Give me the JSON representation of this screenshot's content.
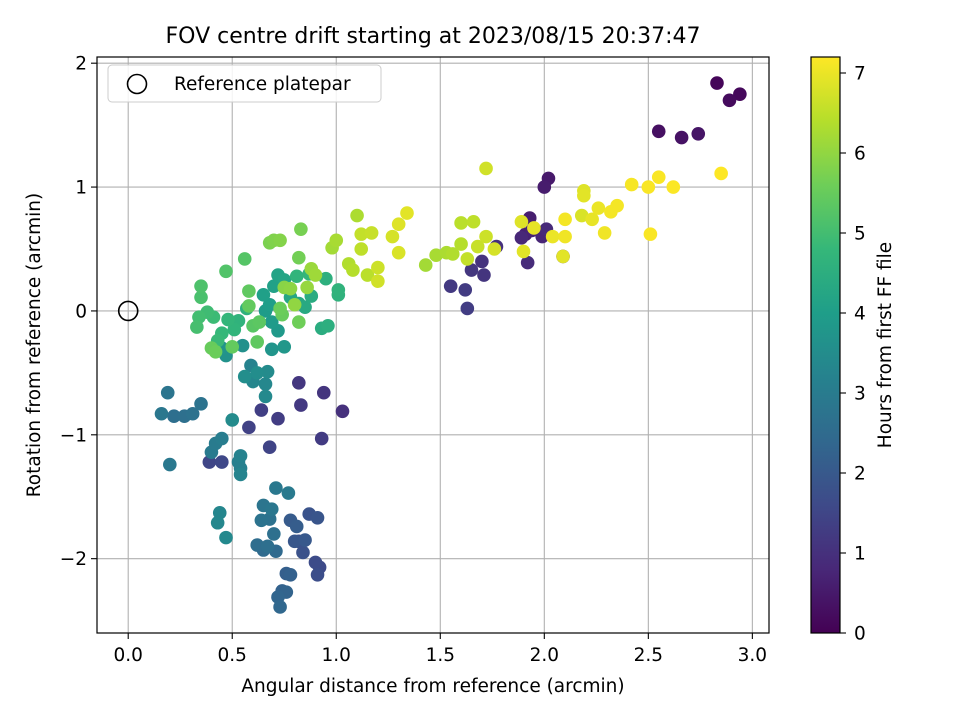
{
  "chart_data": {
    "type": "scatter",
    "title": "FOV centre drift starting at 2023/08/15 20:37:47",
    "xlabel": "Angular distance from reference (arcmin)",
    "ylabel": "Rotation from reference (arcmin)",
    "xlim": [
      -0.15,
      3.08
    ],
    "ylim": [
      -2.6,
      2.05
    ],
    "xticks": [
      0.0,
      0.5,
      1.0,
      1.5,
      2.0,
      2.5,
      3.0
    ],
    "xtick_labels": [
      "0.0",
      "0.5",
      "1.0",
      "1.5",
      "2.0",
      "2.5",
      "3.0"
    ],
    "yticks": [
      -2,
      -1,
      0,
      1,
      2
    ],
    "ytick_labels": [
      "−2",
      "−1",
      "0",
      "1",
      "2"
    ],
    "grid": true,
    "legend": {
      "placement": "top-left",
      "label": "Reference platepar",
      "marker": "open-circle"
    },
    "reference_point": {
      "x": 0.0,
      "y": 0.0
    },
    "colorbar": {
      "label": "Hours from first FF file",
      "colormap": "viridis",
      "range": [
        0,
        7.2
      ],
      "ticks": [
        0,
        1,
        2,
        3,
        4,
        5,
        6,
        7
      ],
      "tick_labels": [
        "0",
        "1",
        "2",
        "3",
        "4",
        "5",
        "6",
        "7"
      ]
    },
    "colormap_stops": [
      "#440154",
      "#482878",
      "#3e4a89",
      "#31688e",
      "#26828e",
      "#1f9e89",
      "#35b779",
      "#6ece58",
      "#b5de2b",
      "#fde725"
    ],
    "points": [
      {
        "x": 2.83,
        "y": 1.84,
        "c": 0.1
      },
      {
        "x": 2.94,
        "y": 1.75,
        "c": 0.15
      },
      {
        "x": 2.89,
        "y": 1.7,
        "c": 0.2
      },
      {
        "x": 2.55,
        "y": 1.45,
        "c": 0.3
      },
      {
        "x": 2.66,
        "y": 1.4,
        "c": 0.35
      },
      {
        "x": 2.74,
        "y": 1.43,
        "c": 0.4
      },
      {
        "x": 2.02,
        "y": 1.07,
        "c": 0.5
      },
      {
        "x": 2.0,
        "y": 1.0,
        "c": 0.55
      },
      {
        "x": 1.93,
        "y": 0.75,
        "c": 0.6
      },
      {
        "x": 1.91,
        "y": 0.62,
        "c": 0.65
      },
      {
        "x": 1.94,
        "y": 0.65,
        "c": 0.7
      },
      {
        "x": 1.99,
        "y": 0.6,
        "c": 0.75
      },
      {
        "x": 1.89,
        "y": 0.59,
        "c": 0.8
      },
      {
        "x": 2.01,
        "y": 0.66,
        "c": 0.85
      },
      {
        "x": 1.92,
        "y": 0.39,
        "c": 0.9
      },
      {
        "x": 2.09,
        "y": 0.44,
        "c": 0.95
      },
      {
        "x": 1.77,
        "y": 0.52,
        "c": 1.0
      },
      {
        "x": 1.7,
        "y": 0.4,
        "c": 1.05
      },
      {
        "x": 1.71,
        "y": 0.29,
        "c": 1.1
      },
      {
        "x": 1.65,
        "y": 0.33,
        "c": 1.15
      },
      {
        "x": 1.55,
        "y": 0.2,
        "c": 1.2
      },
      {
        "x": 1.62,
        "y": 0.17,
        "c": 1.25
      },
      {
        "x": 1.63,
        "y": 0.02,
        "c": 1.3
      },
      {
        "x": 1.03,
        "y": -0.81,
        "c": 1.0
      },
      {
        "x": 0.94,
        "y": -0.66,
        "c": 1.1
      },
      {
        "x": 0.82,
        "y": -0.58,
        "c": 1.15
      },
      {
        "x": 0.83,
        "y": -0.76,
        "c": 1.2
      },
      {
        "x": 0.93,
        "y": -1.03,
        "c": 1.25
      },
      {
        "x": 0.72,
        "y": -0.87,
        "c": 1.3
      },
      {
        "x": 0.64,
        "y": -0.8,
        "c": 1.35
      },
      {
        "x": 0.58,
        "y": -0.94,
        "c": 1.4
      },
      {
        "x": 0.68,
        "y": -1.1,
        "c": 1.45
      },
      {
        "x": 0.39,
        "y": -1.22,
        "c": 1.5
      },
      {
        "x": 0.45,
        "y": -1.22,
        "c": 1.55
      },
      {
        "x": 0.92,
        "y": -2.07,
        "c": 1.6
      },
      {
        "x": 0.9,
        "y": -2.03,
        "c": 1.65
      },
      {
        "x": 0.91,
        "y": -2.13,
        "c": 1.7
      },
      {
        "x": 0.82,
        "y": -1.86,
        "c": 1.75
      },
      {
        "x": 0.84,
        "y": -1.95,
        "c": 1.8
      },
      {
        "x": 0.87,
        "y": -1.64,
        "c": 1.85
      },
      {
        "x": 0.91,
        "y": -1.67,
        "c": 1.9
      },
      {
        "x": 0.8,
        "y": -1.86,
        "c": 1.95
      },
      {
        "x": 0.85,
        "y": -1.85,
        "c": 2.0
      },
      {
        "x": 0.78,
        "y": -1.69,
        "c": 2.05
      },
      {
        "x": 0.81,
        "y": -1.74,
        "c": 2.1
      },
      {
        "x": 0.76,
        "y": -2.12,
        "c": 2.15
      },
      {
        "x": 0.78,
        "y": -2.13,
        "c": 2.2
      },
      {
        "x": 0.74,
        "y": -2.26,
        "c": 2.25
      },
      {
        "x": 0.76,
        "y": -2.27,
        "c": 2.3
      },
      {
        "x": 0.72,
        "y": -2.31,
        "c": 2.35
      },
      {
        "x": 0.73,
        "y": -2.39,
        "c": 2.4
      },
      {
        "x": 0.71,
        "y": -1.94,
        "c": 2.45
      },
      {
        "x": 0.65,
        "y": -1.93,
        "c": 2.5
      },
      {
        "x": 0.62,
        "y": -1.89,
        "c": 2.55
      },
      {
        "x": 0.67,
        "y": -1.9,
        "c": 2.6
      },
      {
        "x": 0.7,
        "y": -1.8,
        "c": 2.65
      },
      {
        "x": 0.68,
        "y": -1.68,
        "c": 2.7
      },
      {
        "x": 0.64,
        "y": -1.69,
        "c": 2.75
      },
      {
        "x": 0.65,
        "y": -1.57,
        "c": 2.8
      },
      {
        "x": 0.69,
        "y": -1.6,
        "c": 2.85
      },
      {
        "x": 0.71,
        "y": -1.43,
        "c": 2.9
      },
      {
        "x": 0.77,
        "y": -1.47,
        "c": 2.95
      },
      {
        "x": 0.22,
        "y": -0.85,
        "c": 2.6
      },
      {
        "x": 0.27,
        "y": -0.85,
        "c": 2.65
      },
      {
        "x": 0.31,
        "y": -0.83,
        "c": 2.7
      },
      {
        "x": 0.35,
        "y": -0.75,
        "c": 2.75
      },
      {
        "x": 0.19,
        "y": -0.66,
        "c": 2.8
      },
      {
        "x": 0.16,
        "y": -0.83,
        "c": 2.85
      },
      {
        "x": 0.2,
        "y": -1.24,
        "c": 2.9
      },
      {
        "x": 0.4,
        "y": -1.14,
        "c": 2.95
      },
      {
        "x": 0.42,
        "y": -1.07,
        "c": 3.0
      },
      {
        "x": 0.45,
        "y": -1.03,
        "c": 3.05
      },
      {
        "x": 0.53,
        "y": -1.22,
        "c": 3.1
      },
      {
        "x": 0.54,
        "y": -1.27,
        "c": 3.15
      },
      {
        "x": 0.54,
        "y": -1.17,
        "c": 3.2
      },
      {
        "x": 0.54,
        "y": -1.32,
        "c": 3.25
      },
      {
        "x": 0.44,
        "y": -1.63,
        "c": 3.3
      },
      {
        "x": 0.43,
        "y": -1.71,
        "c": 3.35
      },
      {
        "x": 0.47,
        "y": -1.83,
        "c": 3.4
      },
      {
        "x": 0.5,
        "y": -0.88,
        "c": 3.45
      },
      {
        "x": 0.59,
        "y": -0.44,
        "c": 3.2
      },
      {
        "x": 0.6,
        "y": -0.57,
        "c": 3.3
      },
      {
        "x": 0.66,
        "y": -0.59,
        "c": 3.35
      },
      {
        "x": 0.66,
        "y": -0.69,
        "c": 3.4
      },
      {
        "x": 0.67,
        "y": -0.49,
        "c": 3.45
      },
      {
        "x": 0.62,
        "y": -0.5,
        "c": 3.5
      },
      {
        "x": 0.56,
        "y": -0.53,
        "c": 3.55
      },
      {
        "x": 0.55,
        "y": -0.28,
        "c": 3.6
      },
      {
        "x": 0.47,
        "y": -0.36,
        "c": 3.65
      },
      {
        "x": 0.45,
        "y": -0.3,
        "c": 3.7
      },
      {
        "x": 0.69,
        "y": -0.31,
        "c": 3.75
      },
      {
        "x": 0.75,
        "y": -0.29,
        "c": 3.8
      },
      {
        "x": 0.72,
        "y": -0.16,
        "c": 3.85
      },
      {
        "x": 0.69,
        "y": -0.09,
        "c": 3.9
      },
      {
        "x": 0.66,
        "y": 0.0,
        "c": 3.95
      },
      {
        "x": 0.68,
        "y": 0.05,
        "c": 4.0
      },
      {
        "x": 0.65,
        "y": 0.13,
        "c": 4.05
      },
      {
        "x": 0.7,
        "y": 0.2,
        "c": 4.1
      },
      {
        "x": 0.72,
        "y": 0.29,
        "c": 4.15
      },
      {
        "x": 0.75,
        "y": 0.25,
        "c": 4.2
      },
      {
        "x": 0.78,
        "y": 0.11,
        "c": 4.25
      },
      {
        "x": 0.82,
        "y": 0.06,
        "c": 4.3
      },
      {
        "x": 0.85,
        "y": 0.03,
        "c": 4.35
      },
      {
        "x": 0.88,
        "y": 0.12,
        "c": 4.4
      },
      {
        "x": 0.93,
        "y": -0.14,
        "c": 4.45
      },
      {
        "x": 0.96,
        "y": -0.12,
        "c": 4.5
      },
      {
        "x": 0.95,
        "y": 0.26,
        "c": 4.55
      },
      {
        "x": 1.01,
        "y": 0.13,
        "c": 4.6
      },
      {
        "x": 1.01,
        "y": 0.17,
        "c": 4.65
      },
      {
        "x": 0.81,
        "y": 0.28,
        "c": 4.7
      },
      {
        "x": 0.87,
        "y": 0.3,
        "c": 4.75
      },
      {
        "x": 0.57,
        "y": 0.02,
        "c": 4.6
      },
      {
        "x": 0.53,
        "y": -0.08,
        "c": 4.65
      },
      {
        "x": 0.51,
        "y": -0.15,
        "c": 4.7
      },
      {
        "x": 0.48,
        "y": -0.07,
        "c": 4.75
      },
      {
        "x": 0.45,
        "y": -0.18,
        "c": 4.8
      },
      {
        "x": 0.43,
        "y": -0.24,
        "c": 4.85
      },
      {
        "x": 0.41,
        "y": -0.05,
        "c": 4.9
      },
      {
        "x": 0.38,
        "y": -0.01,
        "c": 4.95
      },
      {
        "x": 0.34,
        "y": -0.05,
        "c": 5.0
      },
      {
        "x": 0.33,
        "y": -0.13,
        "c": 5.05
      },
      {
        "x": 0.35,
        "y": 0.11,
        "c": 5.1
      },
      {
        "x": 0.35,
        "y": 0.2,
        "c": 5.15
      },
      {
        "x": 0.47,
        "y": 0.32,
        "c": 5.2
      },
      {
        "x": 0.56,
        "y": 0.42,
        "c": 5.25
      },
      {
        "x": 0.6,
        "y": -0.12,
        "c": 5.3
      },
      {
        "x": 0.63,
        "y": -0.09,
        "c": 5.35
      },
      {
        "x": 0.62,
        "y": -0.25,
        "c": 5.4
      },
      {
        "x": 0.5,
        "y": -0.29,
        "c": 5.45
      },
      {
        "x": 0.4,
        "y": -0.3,
        "c": 5.5
      },
      {
        "x": 0.42,
        "y": -0.33,
        "c": 5.55
      },
      {
        "x": 0.58,
        "y": 0.16,
        "c": 5.4
      },
      {
        "x": 0.58,
        "y": 0.04,
        "c": 5.45
      },
      {
        "x": 0.74,
        "y": -0.03,
        "c": 5.5
      },
      {
        "x": 0.73,
        "y": 0.02,
        "c": 5.55
      },
      {
        "x": 0.82,
        "y": -0.09,
        "c": 5.6
      },
      {
        "x": 0.82,
        "y": 0.43,
        "c": 5.65
      },
      {
        "x": 0.83,
        "y": 0.66,
        "c": 5.7
      },
      {
        "x": 0.68,
        "y": 0.55,
        "c": 5.75
      },
      {
        "x": 0.7,
        "y": 0.57,
        "c": 5.8
      },
      {
        "x": 0.73,
        "y": 0.57,
        "c": 5.85
      },
      {
        "x": 0.75,
        "y": 0.19,
        "c": 5.9
      },
      {
        "x": 0.78,
        "y": 0.18,
        "c": 5.95
      },
      {
        "x": 0.8,
        "y": 0.05,
        "c": 6.0
      },
      {
        "x": 0.86,
        "y": 0.19,
        "c": 6.05
      },
      {
        "x": 0.88,
        "y": 0.34,
        "c": 6.1
      },
      {
        "x": 0.9,
        "y": 0.29,
        "c": 6.15
      },
      {
        "x": 0.98,
        "y": 0.51,
        "c": 6.2
      },
      {
        "x": 1.0,
        "y": 0.57,
        "c": 6.25
      },
      {
        "x": 1.1,
        "y": 0.77,
        "c": 6.3
      },
      {
        "x": 1.06,
        "y": 0.38,
        "c": 6.35
      },
      {
        "x": 1.08,
        "y": 0.33,
        "c": 6.4
      },
      {
        "x": 1.15,
        "y": 0.29,
        "c": 6.45
      },
      {
        "x": 1.12,
        "y": 0.5,
        "c": 6.5
      },
      {
        "x": 1.12,
        "y": 0.62,
        "c": 6.55
      },
      {
        "x": 1.17,
        "y": 0.63,
        "c": 6.6
      },
      {
        "x": 1.2,
        "y": 0.35,
        "c": 6.65
      },
      {
        "x": 1.2,
        "y": 0.24,
        "c": 6.7
      },
      {
        "x": 1.27,
        "y": 0.6,
        "c": 6.75
      },
      {
        "x": 1.3,
        "y": 0.47,
        "c": 6.8
      },
      {
        "x": 1.3,
        "y": 0.7,
        "c": 6.85
      },
      {
        "x": 1.34,
        "y": 0.79,
        "c": 6.9
      },
      {
        "x": 1.43,
        "y": 0.37,
        "c": 6.2
      },
      {
        "x": 1.48,
        "y": 0.45,
        "c": 6.25
      },
      {
        "x": 1.53,
        "y": 0.47,
        "c": 6.3
      },
      {
        "x": 1.56,
        "y": 0.46,
        "c": 6.35
      },
      {
        "x": 1.6,
        "y": 0.54,
        "c": 6.4
      },
      {
        "x": 1.6,
        "y": 0.71,
        "c": 6.45
      },
      {
        "x": 1.66,
        "y": 0.72,
        "c": 6.5
      },
      {
        "x": 1.63,
        "y": 0.42,
        "c": 6.55
      },
      {
        "x": 1.68,
        "y": 0.52,
        "c": 6.6
      },
      {
        "x": 1.72,
        "y": 0.6,
        "c": 6.65
      },
      {
        "x": 1.72,
        "y": 1.15,
        "c": 6.7
      },
      {
        "x": 1.76,
        "y": 0.5,
        "c": 6.75
      },
      {
        "x": 1.89,
        "y": 0.72,
        "c": 6.85
      },
      {
        "x": 1.9,
        "y": 0.48,
        "c": 6.9
      },
      {
        "x": 1.95,
        "y": 0.67,
        "c": 6.95
      },
      {
        "x": 2.04,
        "y": 0.6,
        "c": 7.0
      },
      {
        "x": 2.1,
        "y": 0.6,
        "c": 7.05
      },
      {
        "x": 2.1,
        "y": 0.74,
        "c": 7.1
      },
      {
        "x": 2.09,
        "y": 0.44,
        "c": 6.9
      },
      {
        "x": 2.18,
        "y": 0.77,
        "c": 6.8
      },
      {
        "x": 2.19,
        "y": 0.97,
        "c": 6.85
      },
      {
        "x": 2.19,
        "y": 0.93,
        "c": 6.9
      },
      {
        "x": 2.23,
        "y": 0.74,
        "c": 6.95
      },
      {
        "x": 2.26,
        "y": 0.83,
        "c": 7.0
      },
      {
        "x": 2.29,
        "y": 0.63,
        "c": 7.05
      },
      {
        "x": 2.32,
        "y": 0.8,
        "c": 7.1
      },
      {
        "x": 2.35,
        "y": 0.85,
        "c": 7.1
      },
      {
        "x": 2.42,
        "y": 1.02,
        "c": 7.12
      },
      {
        "x": 2.5,
        "y": 1.0,
        "c": 7.15
      },
      {
        "x": 2.55,
        "y": 1.08,
        "c": 7.15
      },
      {
        "x": 2.51,
        "y": 0.62,
        "c": 7.15
      },
      {
        "x": 2.62,
        "y": 1.0,
        "c": 7.18
      },
      {
        "x": 2.85,
        "y": 1.11,
        "c": 7.2
      }
    ]
  }
}
